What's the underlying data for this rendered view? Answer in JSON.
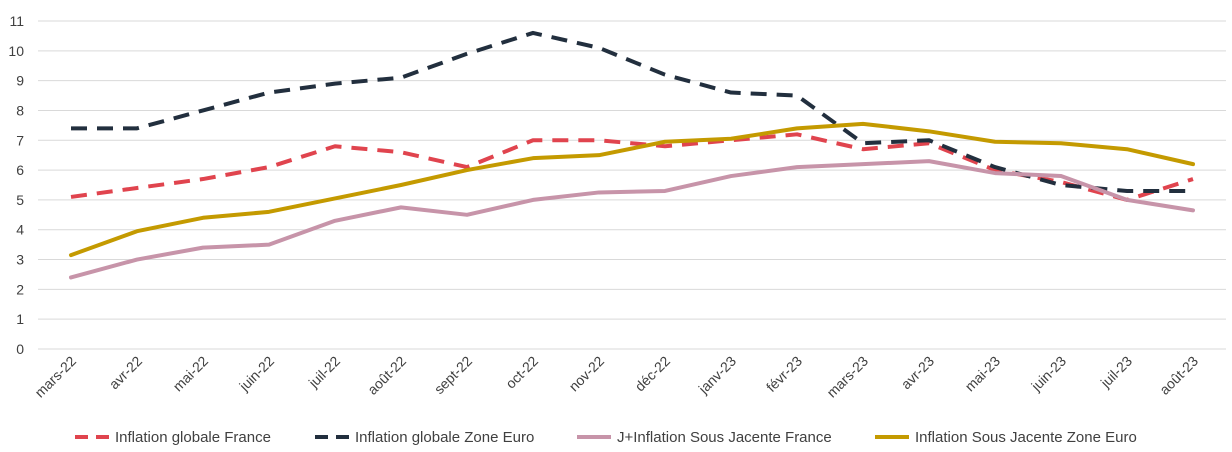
{
  "chart_data": {
    "type": "line",
    "title": "",
    "xlabel": "",
    "ylabel": "",
    "ylim": [
      0,
      11
    ],
    "yticks": [
      0,
      1,
      2,
      3,
      4,
      5,
      6,
      7,
      8,
      9,
      10,
      11
    ],
    "grid": true,
    "legend_position": "bottom",
    "categories": [
      "mars-22",
      "avr-22",
      "mai-22",
      "juin-22",
      "juil-22",
      "août-22",
      "sept-22",
      "oct-22",
      "nov-22",
      "déc-22",
      "janv-23",
      "févr-23",
      "mars-23",
      "avr-23",
      "mai-23",
      "juin-23",
      "juil-23",
      "août-23"
    ],
    "series": [
      {
        "name": "Inflation globale France",
        "color": "#e0444e",
        "style": "dashed",
        "values": [
          5.1,
          5.4,
          5.7,
          6.1,
          6.8,
          6.6,
          6.1,
          7.0,
          7.0,
          6.8,
          7.0,
          7.2,
          6.7,
          6.9,
          6.0,
          5.6,
          5.0,
          5.7
        ]
      },
      {
        "name": "Inflation globale Zone Euro",
        "color": "#222f3e",
        "style": "dashed",
        "values": [
          7.4,
          7.4,
          8.0,
          8.6,
          8.9,
          9.1,
          9.9,
          10.6,
          10.1,
          9.2,
          8.6,
          8.5,
          6.9,
          7.0,
          6.1,
          5.5,
          5.3,
          5.3
        ]
      },
      {
        "name": "J+Inflation Sous Jacente France",
        "color": "#c794a9",
        "style": "solid",
        "values": [
          2.4,
          3.0,
          3.4,
          3.5,
          4.3,
          4.75,
          4.5,
          5.0,
          5.25,
          5.3,
          5.8,
          6.1,
          6.2,
          6.3,
          5.9,
          5.8,
          5.0,
          4.65
        ]
      },
      {
        "name": "Inflation Sous Jacente Zone Euro",
        "color": "#c49a00",
        "style": "solid",
        "values": [
          3.15,
          3.95,
          4.4,
          4.6,
          5.05,
          5.5,
          6.0,
          6.4,
          6.5,
          6.95,
          7.05,
          7.4,
          7.55,
          7.3,
          6.95,
          6.9,
          6.7,
          6.2
        ]
      }
    ]
  }
}
